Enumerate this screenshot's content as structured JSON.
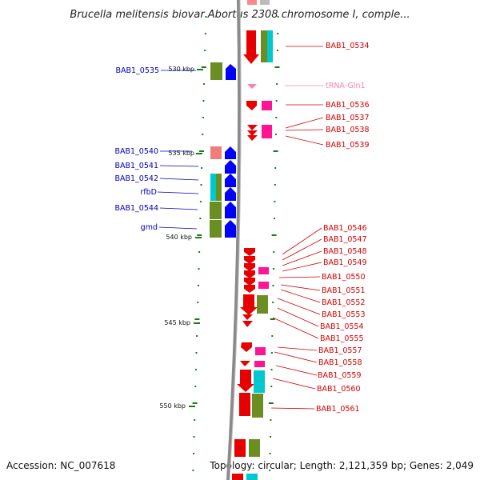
{
  "title": "Brucella melitensis biovar Abortus 2308 chromosome I, comple...",
  "accession": "Accession: NC_007618",
  "topology": "Topology: circular; Length: 2,121,359 bp; Genes: 2,049",
  "scale_labels": [
    "530 kbp",
    "535 kbp",
    "540 kbp",
    "545 kbp",
    "550 kbp"
  ],
  "colors": {
    "forward_cds": "#ff0000",
    "reverse_cds": "#0000ff",
    "cog_olive": "#6b8e23",
    "cog_cyan": "#00c8d0",
    "cog_pink": "#ff1493",
    "trna": "#ff7fb0",
    "backbone": "#808080",
    "tick": "#1a7a1a"
  },
  "right_labels": [
    "BAB1_0534",
    "tRNA-Gln1",
    "BAB1_0536",
    "BAB1_0537",
    "BAB1_0538",
    "BAB1_0539",
    "BAB1_0546",
    "BAB1_0547",
    "BAB1_0548",
    "BAB1_0549",
    "BAB1_0550",
    "BAB1_0551",
    "BAB1_0552",
    "BAB1_0553",
    "BAB1_0554",
    "BAB1_0555",
    "BAB1_0557",
    "BAB1_0558",
    "BAB1_0559",
    "BAB1_0560",
    "BAB1_0561"
  ],
  "left_labels": [
    "BAB1_0535",
    "BAB1_0540",
    "BAB1_0541",
    "BAB1_0542",
    "rfbD",
    "BAB1_0544",
    "gmd"
  ]
}
